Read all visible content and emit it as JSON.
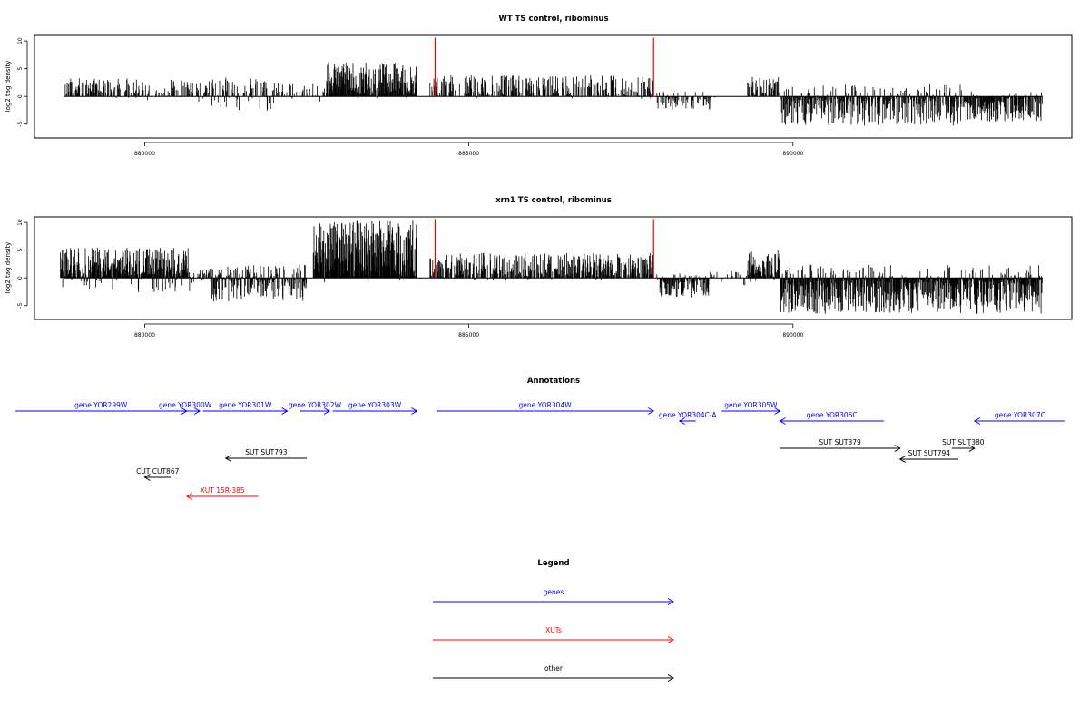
{
  "chart_data": [
    {
      "type": "bar",
      "title": "WT TS control, ribominus",
      "xlabel": "",
      "ylabel": "log2 tag density",
      "xlim": [
        878300,
        894300
      ],
      "ylim": [
        -7.5,
        11
      ],
      "yticks": [
        -5,
        0,
        5,
        10
      ],
      "xticks": [
        880000,
        885000,
        890000
      ],
      "xtick_labels": [
        "880000",
        "885000",
        "890000"
      ],
      "markers": [
        {
          "x": 884480,
          "color": "#ff0000"
        },
        {
          "x": 887850,
          "color": "#ff0000"
        }
      ],
      "regions": [
        {
          "start": 878750,
          "end": 880000,
          "max": 3.3,
          "min": -0.3,
          "density": 0.55,
          "neg_fraction": 0.05
        },
        {
          "start": 880000,
          "end": 881000,
          "max": 3.0,
          "min": -1.0,
          "density": 0.45,
          "neg_fraction": 0.08
        },
        {
          "start": 881000,
          "end": 882000,
          "max": 3.5,
          "min": -2.8,
          "density": 0.45,
          "neg_fraction": 0.35
        },
        {
          "start": 882000,
          "end": 882800,
          "max": 2.5,
          "min": -1.0,
          "density": 0.35,
          "neg_fraction": 0.1
        },
        {
          "start": 882800,
          "end": 884200,
          "max": 6.2,
          "min": -0.3,
          "density": 0.95,
          "neg_fraction": 0.02
        },
        {
          "start": 884400,
          "end": 887850,
          "max": 3.8,
          "min": -0.5,
          "density": 0.5,
          "neg_fraction": 0.04
        },
        {
          "start": 887900,
          "end": 888800,
          "max": 1.0,
          "min": -2.5,
          "density": 0.5,
          "neg_fraction": 0.85
        },
        {
          "start": 889300,
          "end": 889800,
          "max": 3.5,
          "min": -0.3,
          "density": 0.6,
          "neg_fraction": 0.05
        },
        {
          "start": 889800,
          "end": 892600,
          "max": 2.2,
          "min": -5.3,
          "density": 0.8,
          "neg_fraction": 0.8
        },
        {
          "start": 892600,
          "end": 893850,
          "max": 1.0,
          "min": -4.5,
          "density": 0.85,
          "neg_fraction": 0.92
        }
      ]
    },
    {
      "type": "bar",
      "title": "xrn1 TS control, ribominus",
      "xlabel": "",
      "ylabel": "log2 tag density",
      "xlim": [
        878300,
        894300
      ],
      "ylim": [
        -7.5,
        11
      ],
      "yticks": [
        -5,
        0,
        5,
        10
      ],
      "xticks": [
        880000,
        885000,
        890000
      ],
      "xtick_labels": [
        "880000",
        "885000",
        "890000"
      ],
      "markers": [
        {
          "x": 884480,
          "color": "#ff0000"
        },
        {
          "x": 887850,
          "color": "#ff0000"
        }
      ],
      "regions": [
        {
          "start": 878700,
          "end": 880700,
          "max": 5.5,
          "min": -2.8,
          "density": 1.0,
          "neg_fraction": 0.12
        },
        {
          "start": 880700,
          "end": 881000,
          "max": 1.5,
          "min": -1.0,
          "density": 0.5,
          "neg_fraction": 0.3
        },
        {
          "start": 881000,
          "end": 882500,
          "max": 2.5,
          "min": -4.3,
          "density": 0.85,
          "neg_fraction": 0.55
        },
        {
          "start": 882600,
          "end": 884200,
          "max": 10.5,
          "min": -1.0,
          "density": 1.0,
          "neg_fraction": 0.02
        },
        {
          "start": 884400,
          "end": 887850,
          "max": 4.5,
          "min": -0.5,
          "density": 0.7,
          "neg_fraction": 0.04
        },
        {
          "start": 887900,
          "end": 888700,
          "max": 1.0,
          "min": -3.5,
          "density": 0.85,
          "neg_fraction": 0.88
        },
        {
          "start": 888700,
          "end": 889300,
          "max": 1.5,
          "min": -1.5,
          "density": 0.4,
          "neg_fraction": 0.4
        },
        {
          "start": 889300,
          "end": 889800,
          "max": 5.0,
          "min": -1.0,
          "density": 0.9,
          "neg_fraction": 0.1
        },
        {
          "start": 889800,
          "end": 893850,
          "max": 2.5,
          "min": -6.5,
          "density": 1.0,
          "neg_fraction": 0.85
        }
      ]
    }
  ],
  "annotations": {
    "title": "Annotations",
    "axis_xlim": [
      878300,
      894300
    ],
    "features": [
      {
        "label": "gene YOR299W",
        "start": 878000,
        "end": 880650,
        "strand": "+",
        "color": "#0000ff",
        "row": 0
      },
      {
        "label": "gene YOR300W",
        "start": 880400,
        "end": 880850,
        "strand": "+",
        "color": "#0000ff",
        "row": 0
      },
      {
        "label": "gene YOR301W",
        "start": 880900,
        "end": 882200,
        "strand": "+",
        "color": "#0000ff",
        "row": 0
      },
      {
        "label": "gene YOR302W",
        "start": 882400,
        "end": 882850,
        "strand": "+",
        "color": "#0000ff",
        "row": 0
      },
      {
        "label": "gene YOR303W",
        "start": 882900,
        "end": 884200,
        "strand": "+",
        "color": "#0000ff",
        "row": 0
      },
      {
        "label": "gene YOR304W",
        "start": 884500,
        "end": 887850,
        "strand": "+",
        "color": "#0000ff",
        "row": 0
      },
      {
        "label": "gene YOR304C-A",
        "start": 888250,
        "end": 888500,
        "strand": "-",
        "color": "#0000ff",
        "row": 1
      },
      {
        "label": "gene YOR305W",
        "start": 888900,
        "end": 889800,
        "strand": "+",
        "color": "#0000ff",
        "row": 0
      },
      {
        "label": "gene YOR306C",
        "start": 889800,
        "end": 891400,
        "strand": "-",
        "color": "#0000ff",
        "row": 1
      },
      {
        "label": "gene YOR307C",
        "start": 892800,
        "end": 894200,
        "strand": "-",
        "color": "#0000ff",
        "row": 1
      },
      {
        "label": "SUT SUT793",
        "start": 881250,
        "end": 882500,
        "strand": "-",
        "color": "#000000",
        "row": 2
      },
      {
        "label": "SUT SUT379",
        "start": 889800,
        "end": 891650,
        "strand": "+",
        "color": "#000000",
        "row": 3
      },
      {
        "label": "SUT SUT380",
        "start": 892450,
        "end": 892800,
        "strand": "+",
        "color": "#000000",
        "row": 3
      },
      {
        "label": "SUT SUT794",
        "start": 891650,
        "end": 892550,
        "strand": "-",
        "color": "#000000",
        "row": 4
      },
      {
        "label": "CUT CUT867",
        "start": 880000,
        "end": 880400,
        "strand": "-",
        "color": "#000000",
        "row": 5
      },
      {
        "label": "XUT 15R-385",
        "start": 880650,
        "end": 881750,
        "strand": "-",
        "color": "#ff0000",
        "row": 6
      }
    ]
  },
  "legend": {
    "title": "Legend",
    "items": [
      {
        "label": "genes",
        "color": "#0000ff"
      },
      {
        "label": "XUTs",
        "color": "#ff0000"
      },
      {
        "label": "other",
        "color": "#000000"
      }
    ]
  }
}
